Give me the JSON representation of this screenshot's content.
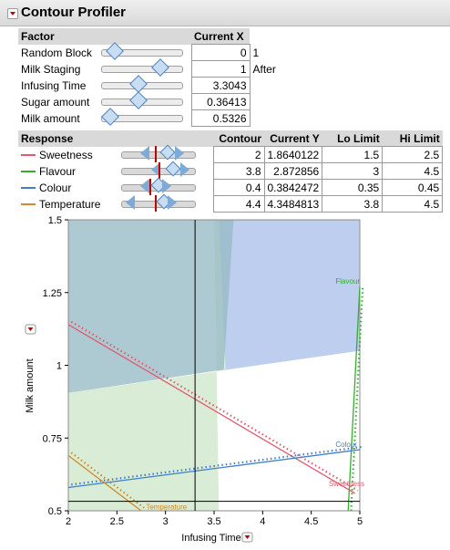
{
  "title": "Contour Profiler",
  "factors": {
    "headers": [
      "Factor",
      "Current X"
    ],
    "rows": [
      {
        "name": "Random Block",
        "value": "0",
        "note": "1",
        "level": 0.1
      },
      {
        "name": "Milk Staging",
        "value": "1",
        "note": "After",
        "level": 0.77
      },
      {
        "name": "Infusing Time",
        "value": "3.3043",
        "note": "",
        "level": 0.44
      },
      {
        "name": "Sugar amount",
        "value": "0.36413",
        "note": "",
        "level": 0.45
      },
      {
        "name": "Milk amount",
        "value": "0.5326",
        "note": "",
        "level": 0.03
      }
    ]
  },
  "responses": {
    "headers": [
      "Response",
      "Contour",
      "Current Y",
      "Lo Limit",
      "Hi Limit"
    ],
    "rows": [
      {
        "name": "Sweetness",
        "color": "#e05b6f",
        "contour": "2",
        "current": "1.8640122",
        "lo": "1.5",
        "hi": "2.5"
      },
      {
        "name": "Flavour",
        "color": "#3aaa35",
        "contour": "3.8",
        "current": "2.872856",
        "lo": "3",
        "hi": "4.5"
      },
      {
        "name": "Colour",
        "color": "#3f7fc9",
        "contour": "0.4",
        "current": "0.3842472",
        "lo": "0.35",
        "hi": "0.45"
      },
      {
        "name": "Temperature",
        "color": "#d08a2e",
        "contour": "4.4",
        "current": "4.3484813",
        "lo": "3.8",
        "hi": "4.5"
      }
    ]
  },
  "chart_data": {
    "type": "line",
    "xlabel": "Infusing Time",
    "ylabel": "Milk amount",
    "xlim": [
      2,
      5
    ],
    "ylim": [
      0.5,
      1.5
    ],
    "xticks": [
      "2",
      "2.5",
      "3",
      "3.5",
      "4",
      "4.5",
      "5"
    ],
    "yticks": [
      "0.5",
      "0.75",
      "1",
      "1.25",
      "1.5"
    ],
    "crosshair": {
      "x": 3.3043,
      "y": 0.5326
    },
    "series": [
      {
        "name": "Sweetness",
        "color": "#e05b6f",
        "x": [
          2,
          4.95
        ],
        "y": [
          1.14,
          0.56
        ]
      },
      {
        "name": "Flavour",
        "color": "#3aaa35",
        "x": [
          4.88,
          5
        ],
        "y": [
          0.5,
          1.27
        ]
      },
      {
        "name": "Colour",
        "color": "#3f7fc9",
        "x": [
          2,
          5
        ],
        "y": [
          0.58,
          0.71
        ]
      },
      {
        "name": "Temperature",
        "color": "#d08a2e",
        "x": [
          2,
          2.75
        ],
        "y": [
          0.69,
          0.5
        ]
      }
    ],
    "labels": [
      "Flavour",
      "Colour",
      "Sweetness",
      "Temperature"
    ]
  }
}
